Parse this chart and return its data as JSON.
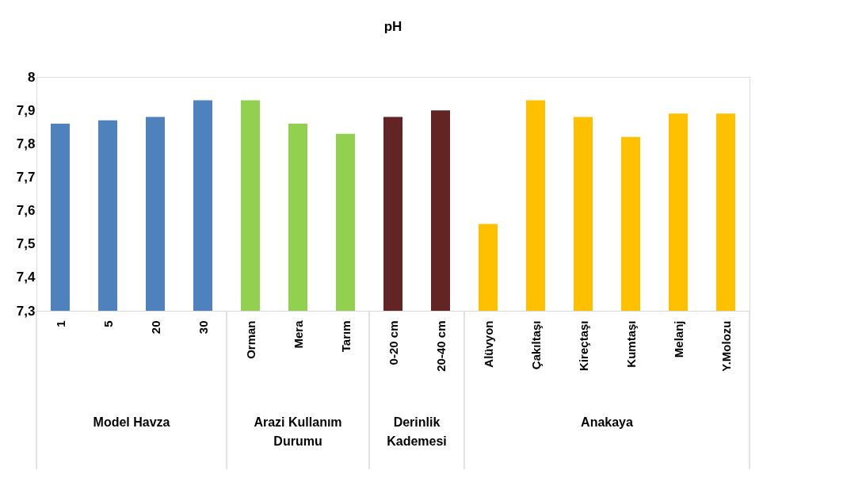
{
  "chart_data": {
    "type": "bar",
    "title": "pH",
    "categories": [
      "1",
      "5",
      "20",
      "30",
      "Orman",
      "Mera",
      "Tarım",
      "0-20 cm",
      "20-40 cm",
      "Alüvyon",
      "Çakıltaşı",
      "Kireçtaşı",
      "Kumtaşı",
      "Melanj",
      "Y.Molozu"
    ],
    "series": [
      {
        "color": "#4f81bd",
        "values": [
          7.86,
          7.87,
          7.88,
          7.93,
          null,
          null,
          null,
          null,
          null,
          null,
          null,
          null,
          null,
          null,
          null
        ]
      },
      {
        "color": "#92d050",
        "values": [
          null,
          null,
          null,
          null,
          7.93,
          7.86,
          7.83,
          null,
          null,
          null,
          null,
          null,
          null,
          null,
          null
        ]
      },
      {
        "color": "#632523",
        "values": [
          null,
          null,
          null,
          null,
          null,
          null,
          null,
          7.88,
          7.9,
          null,
          null,
          null,
          null,
          null,
          null
        ]
      },
      {
        "color": "#ffc000",
        "values": [
          null,
          null,
          null,
          null,
          null,
          null,
          null,
          null,
          null,
          7.56,
          7.93,
          7.88,
          7.82,
          7.89,
          7.89
        ]
      }
    ],
    "ylim": [
      7.3,
      8
    ],
    "yticks": [
      {
        "value": 7.3,
        "label": "7,3"
      },
      {
        "value": 7.4,
        "label": "7,4"
      },
      {
        "value": 7.5,
        "label": "7,5"
      },
      {
        "value": 7.6,
        "label": "7,6"
      },
      {
        "value": 7.7,
        "label": "7,7"
      },
      {
        "value": 7.8,
        "label": "7,8"
      },
      {
        "value": 7.9,
        "label": "7,9"
      },
      8
    ],
    "annotations": [
      "Model Havza",
      "Arazi Kullanım Durumu",
      "Derinlik Kademesi",
      "Anakaya"
    ]
  }
}
